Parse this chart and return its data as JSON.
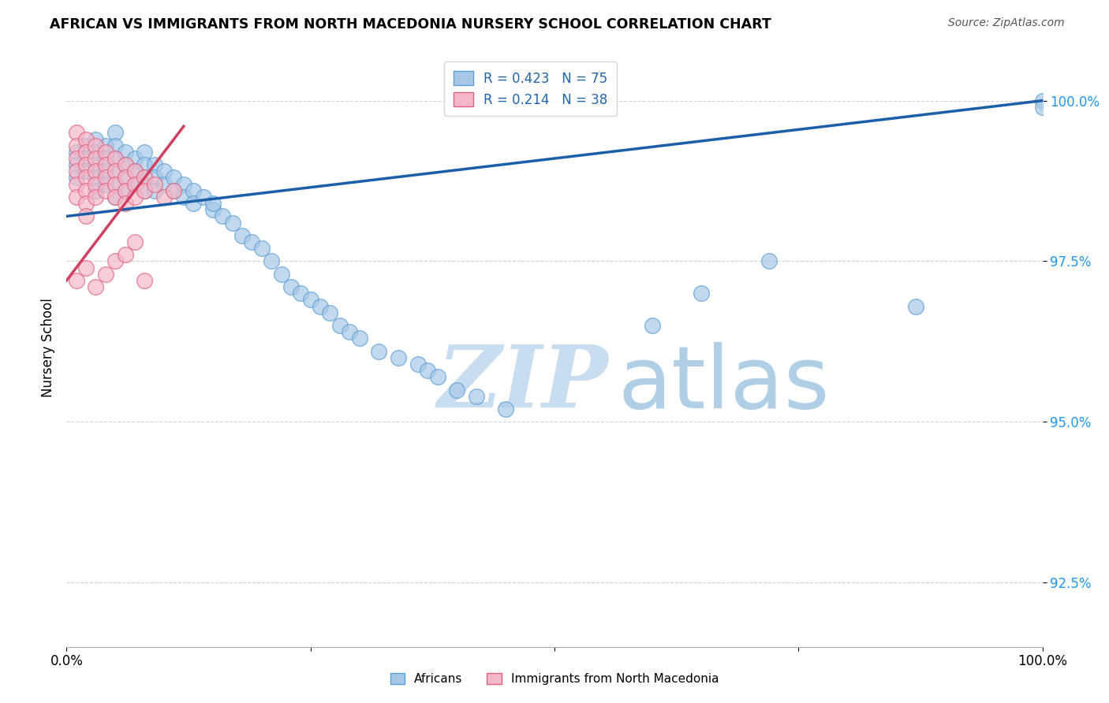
{
  "title": "AFRICAN VS IMMIGRANTS FROM NORTH MACEDONIA NURSERY SCHOOL CORRELATION CHART",
  "source": "Source: ZipAtlas.com",
  "ylabel": "Nursery School",
  "y_ticks": [
    92.5,
    95.0,
    97.5,
    100.0
  ],
  "blue_R": 0.423,
  "blue_N": 75,
  "pink_R": 0.214,
  "pink_N": 38,
  "blue_color": "#a8c8e8",
  "blue_edge_color": "#5a9fd4",
  "blue_line_color": "#1a5fa8",
  "pink_color": "#f5b8c8",
  "pink_edge_color": "#e06080",
  "pink_line_color": "#d04060",
  "legend_label_blue": "Africans",
  "legend_label_pink": "Immigrants from North Macedonia",
  "watermark_zip_color": "#c8ddf0",
  "watermark_atlas_color": "#7ab0d8",
  "blue_line_x0": 0,
  "blue_line_x1": 100,
  "blue_line_y0": 98.2,
  "blue_line_y1": 100.0,
  "pink_line_x0": 0,
  "pink_line_x1": 12,
  "pink_line_y0": 97.2,
  "pink_line_y1": 99.6,
  "xlim": [
    0,
    100
  ],
  "ylim": [
    91.5,
    100.8
  ],
  "blue_scatter_x": [
    1,
    1,
    1,
    2,
    2,
    2,
    3,
    3,
    3,
    3,
    3,
    4,
    4,
    4,
    4,
    5,
    5,
    5,
    5,
    5,
    5,
    6,
    6,
    6,
    6,
    7,
    7,
    7,
    8,
    8,
    8,
    8,
    9,
    9,
    9,
    10,
    10,
    11,
    11,
    12,
    12,
    13,
    13,
    14,
    15,
    15,
    16,
    17,
    18,
    19,
    20,
    21,
    22,
    23,
    24,
    25,
    26,
    27,
    28,
    29,
    30,
    32,
    34,
    36,
    37,
    38,
    40,
    42,
    45,
    60,
    65,
    72,
    87,
    100,
    100
  ],
  "blue_scatter_y": [
    99.2,
    99.0,
    98.8,
    99.3,
    99.1,
    98.9,
    99.4,
    99.2,
    99.0,
    98.8,
    98.6,
    99.3,
    99.1,
    98.9,
    98.7,
    99.5,
    99.3,
    99.1,
    98.9,
    98.7,
    98.5,
    99.2,
    99.0,
    98.8,
    98.6,
    99.1,
    98.9,
    98.7,
    99.2,
    99.0,
    98.8,
    98.6,
    99.0,
    98.8,
    98.6,
    98.9,
    98.7,
    98.8,
    98.6,
    98.7,
    98.5,
    98.6,
    98.4,
    98.5,
    98.3,
    98.4,
    98.2,
    98.1,
    97.9,
    97.8,
    97.7,
    97.5,
    97.3,
    97.1,
    97.0,
    96.9,
    96.8,
    96.7,
    96.5,
    96.4,
    96.3,
    96.1,
    96.0,
    95.9,
    95.8,
    95.7,
    95.5,
    95.4,
    95.2,
    96.5,
    97.0,
    97.5,
    96.8,
    100.0,
    99.9
  ],
  "pink_scatter_x": [
    1,
    1,
    1,
    1,
    1,
    1,
    2,
    2,
    2,
    2,
    2,
    2,
    2,
    3,
    3,
    3,
    3,
    3,
    4,
    4,
    4,
    4,
    5,
    5,
    5,
    5,
    6,
    6,
    6,
    6,
    7,
    7,
    7,
    8,
    8,
    9,
    10,
    11
  ],
  "pink_scatter_y": [
    99.5,
    99.3,
    99.1,
    98.9,
    98.7,
    98.5,
    99.4,
    99.2,
    99.0,
    98.8,
    98.6,
    98.4,
    98.2,
    99.3,
    99.1,
    98.9,
    98.7,
    98.5,
    99.2,
    99.0,
    98.8,
    98.6,
    99.1,
    98.9,
    98.7,
    98.5,
    99.0,
    98.8,
    98.6,
    98.4,
    98.9,
    98.7,
    98.5,
    98.8,
    98.6,
    98.7,
    98.5,
    98.6
  ],
  "pink_scatter_extra_low_x": [
    1,
    2,
    3,
    4,
    5,
    6,
    7,
    8
  ],
  "pink_scatter_extra_low_y": [
    97.2,
    97.4,
    97.1,
    97.3,
    97.5,
    97.6,
    97.8,
    97.2
  ]
}
